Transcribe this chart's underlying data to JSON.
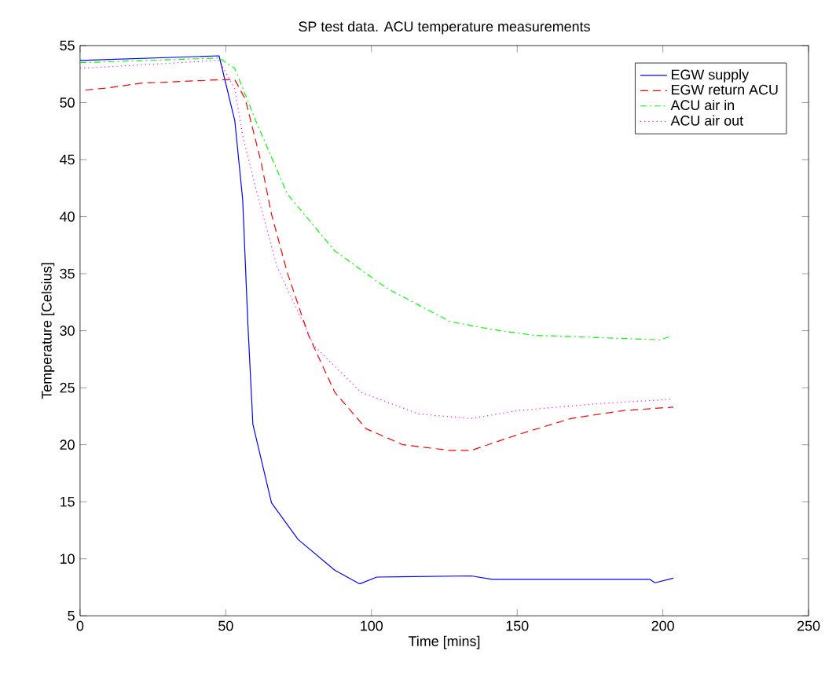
{
  "chart_data": {
    "type": "line",
    "title": "SP test data. ACU temperature measurements",
    "xlabel": "Time [mins]",
    "ylabel": "Temperature [Celsius]",
    "xlim": [
      0,
      250
    ],
    "ylim": [
      5,
      55
    ],
    "xticks": [
      0,
      50,
      100,
      150,
      200,
      250
    ],
    "yticks": [
      5,
      10,
      15,
      20,
      25,
      30,
      35,
      40,
      45,
      50,
      55
    ],
    "grid": false,
    "legend": "top right",
    "marker": "none",
    "series": [
      {
        "name": "EGW supply",
        "color": "#0000ff",
        "line_style": "solid",
        "x": [
          0,
          47.7,
          53.1,
          55.8,
          57.6,
          59.3,
          65.7,
          74.8,
          87.4,
          96,
          101.8,
          134.2,
          141.4,
          195.5,
          197.3,
          203.6
        ],
        "values": [
          53.7,
          54.1,
          48.4,
          41.5,
          30.5,
          21.8,
          14.9,
          11.7,
          9.0,
          7.8,
          8.4,
          8.5,
          8.2,
          8.2,
          7.9,
          8.3
        ]
      },
      {
        "name": "EGW return ACU",
        "color": "#ff0000",
        "line_style": "dashed",
        "x": [
          1.8,
          9.9,
          20.7,
          47.7,
          53.1,
          56.7,
          62.1,
          65.7,
          71.1,
          78.4,
          87.4,
          98.2,
          110.8,
          127,
          134.2,
          150.4,
          168.4,
          186.5,
          203.6
        ],
        "values": [
          51.1,
          51.3,
          51.7,
          52.0,
          52.0,
          50.3,
          44.8,
          40.2,
          35.1,
          29.6,
          24.6,
          21.4,
          20.0,
          19.5,
          19.5,
          20.9,
          22.3,
          23.0,
          23.3
        ]
      },
      {
        "name": "ACU air in",
        "color": "#00ff00",
        "line_style": "dashdotted",
        "x": [
          0,
          47.7,
          53.1,
          60.3,
          71.1,
          87.4,
          105.4,
          127,
          141.4,
          155.8,
          177.5,
          199,
          202.7
        ],
        "values": [
          53.5,
          53.9,
          53.0,
          48.4,
          42.0,
          37.0,
          33.7,
          30.8,
          30.1,
          29.6,
          29.4,
          29.2,
          29.5
        ]
      },
      {
        "name": "ACU air out",
        "color": "#ff00ff",
        "line_style": "dotted",
        "x": [
          0,
          47.7,
          53.1,
          55.8,
          60.3,
          67.6,
          80.2,
          96.4,
          116.2,
          134.2,
          150.4,
          177.5,
          203.6
        ],
        "values": [
          53.0,
          53.7,
          51.2,
          47.1,
          42.5,
          35.6,
          28.7,
          24.6,
          22.7,
          22.3,
          23.0,
          23.6,
          24.0
        ]
      }
    ]
  }
}
